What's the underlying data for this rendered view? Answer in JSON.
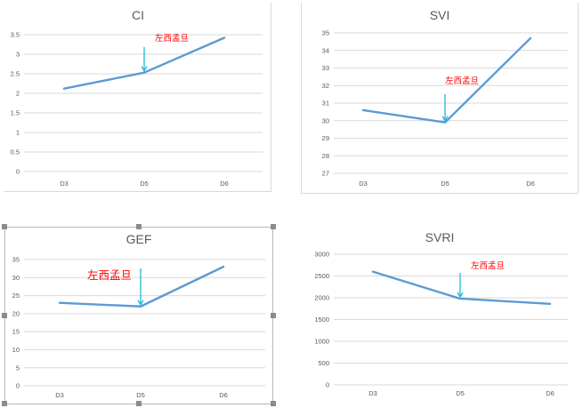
{
  "chart_data": [
    {
      "type": "line",
      "title": "CI",
      "categories": [
        "D3",
        "D5",
        "D6"
      ],
      "series": [
        {
          "values": [
            2.12,
            2.53,
            3.42
          ]
        }
      ],
      "ylim": [
        0,
        3.5
      ],
      "yticks": [
        "0",
        "0.5",
        "1",
        "1.5",
        "2",
        "2.5",
        "3",
        "3.5"
      ],
      "grid": true,
      "annotation": {
        "text": "左西孟旦",
        "category": "D5"
      }
    },
    {
      "type": "line",
      "title": "SVI",
      "categories": [
        "D3",
        "D5",
        "D6"
      ],
      "series": [
        {
          "values": [
            30.6,
            29.9,
            34.7
          ]
        }
      ],
      "ylim": [
        27,
        35
      ],
      "yticks": [
        "27",
        "28",
        "29",
        "30",
        "31",
        "32",
        "33",
        "34",
        "35"
      ],
      "grid": true,
      "annotation": {
        "text": "左西孟旦",
        "category": "D5"
      }
    },
    {
      "type": "line",
      "title": "GEF",
      "categories": [
        "D3",
        "D5",
        "D6"
      ],
      "series": [
        {
          "values": [
            23,
            22,
            33
          ]
        }
      ],
      "ylim": [
        0,
        35
      ],
      "yticks": [
        "0",
        "5",
        "10",
        "15",
        "20",
        "25",
        "30",
        "35"
      ],
      "grid": true,
      "annotation": {
        "text": "左西孟旦",
        "category": "D5"
      }
    },
    {
      "type": "line",
      "title": "SVRI",
      "categories": [
        "D3",
        "D5",
        "D6"
      ],
      "series": [
        {
          "values": [
            2600,
            1980,
            1860
          ]
        }
      ],
      "ylim": [
        0,
        3000
      ],
      "yticks": [
        "0",
        "500",
        "1000",
        "1500",
        "2000",
        "2500",
        "3000"
      ],
      "grid": true,
      "annotation": {
        "text": "左西孟旦",
        "category": "D5"
      }
    }
  ],
  "colors": {
    "series": "#5b9bd5",
    "arrow": "#1fb6d1",
    "annotation": "#ff0000",
    "grid": "#d9d9d9"
  }
}
